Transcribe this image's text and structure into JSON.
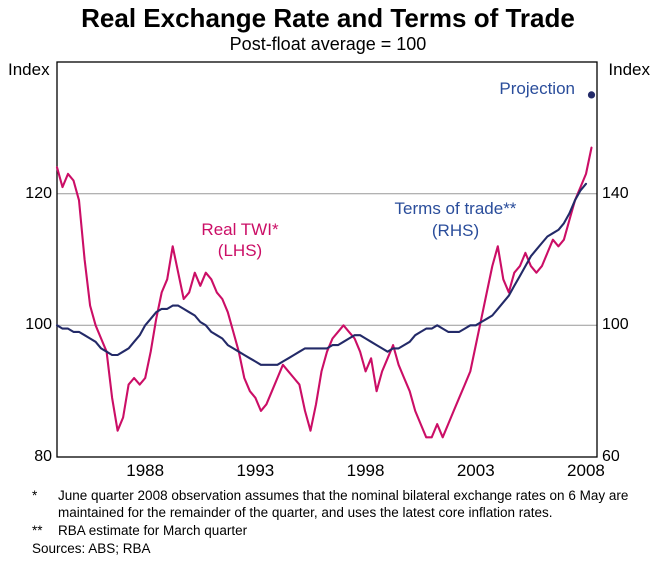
{
  "page": {
    "title": "Real Exchange Rate and Terms of Trade",
    "subtitle": "Post-float average = 100"
  },
  "chart_data": {
    "type": "line",
    "title": "Real Exchange Rate and Terms of Trade",
    "subtitle": "Post-float average = 100",
    "x_start": 1984.0,
    "x_end": 2008.5,
    "period": 0.25,
    "x_tick_years": [
      1988,
      1993,
      1998,
      2003,
      2008
    ],
    "left_axis": {
      "unit": "Index",
      "lim": [
        80,
        140
      ],
      "ticks": [
        120,
        100,
        80
      ]
    },
    "right_axis": {
      "unit": "Index",
      "lim": [
        60,
        180
      ],
      "ticks": [
        140,
        100,
        60
      ]
    },
    "gridlines_lhs": [
      100,
      120
    ],
    "grid_color": "#999999",
    "series": [
      {
        "name": "Real TWI* (LHS)",
        "axis": "lhs",
        "color": "#cb0e66",
        "start": 1984.0,
        "values": [
          124,
          121,
          123,
          122,
          119,
          110,
          103,
          100,
          98,
          96,
          89,
          84,
          86,
          91,
          92,
          91,
          92,
          96,
          101,
          105,
          107,
          112,
          108,
          104,
          105,
          108,
          106,
          108,
          107,
          105,
          104,
          102,
          99,
          96,
          92,
          90,
          89,
          87,
          88,
          90,
          92,
          94,
          93,
          92,
          91,
          87,
          84,
          88,
          93,
          96,
          98,
          99,
          100,
          99,
          98,
          96,
          93,
          95,
          90,
          93,
          95,
          97,
          94,
          92,
          90,
          87,
          85,
          83,
          83,
          85,
          83,
          85,
          87,
          89,
          91,
          93,
          97,
          101,
          105,
          109,
          112,
          107,
          105,
          108,
          109,
          111,
          109,
          108,
          109,
          111,
          113,
          112,
          113,
          116,
          119,
          121,
          123,
          127
        ]
      },
      {
        "name": "Terms of trade** (RHS)",
        "axis": "rhs",
        "color": "#232a68",
        "start": 1984.0,
        "values": [
          100,
          99,
          99,
          98,
          98,
          97,
          96,
          95,
          93,
          92,
          91,
          91,
          92,
          93,
          95,
          97,
          100,
          102,
          104,
          105,
          105,
          106,
          106,
          105,
          104,
          103,
          101,
          100,
          98,
          97,
          96,
          94,
          93,
          92,
          91,
          90,
          89,
          88,
          88,
          88,
          88,
          89,
          90,
          91,
          92,
          93,
          93,
          93,
          93,
          93,
          94,
          94,
          95,
          96,
          97,
          97,
          96,
          95,
          94,
          93,
          92,
          93,
          93,
          94,
          95,
          97,
          98,
          99,
          99,
          100,
          99,
          98,
          98,
          98,
          99,
          100,
          100,
          101,
          102,
          103,
          105,
          107,
          109,
          112,
          115,
          118,
          121,
          123,
          125,
          127,
          128,
          129,
          131,
          134,
          138,
          141,
          143
        ]
      }
    ],
    "projection": {
      "label": "Projection",
      "x": 2008.25,
      "value_rhs": 170,
      "color": "#232a68"
    },
    "annotations": {
      "twi_label": "Real TWI*",
      "twi_sub": "(LHS)",
      "tot_label": "Terms of trade**",
      "tot_sub": "(RHS)",
      "text_blue": "#2a4d9b"
    }
  },
  "footnotes": [
    {
      "marker": "*",
      "text": "June quarter 2008 observation assumes that the nominal bilateral exchange rates on 6 May are maintained for the remainder of the quarter, and uses the latest core inflation rates."
    },
    {
      "marker": "**",
      "text": "RBA estimate for March quarter"
    }
  ],
  "sources": "Sources: ABS; RBA"
}
